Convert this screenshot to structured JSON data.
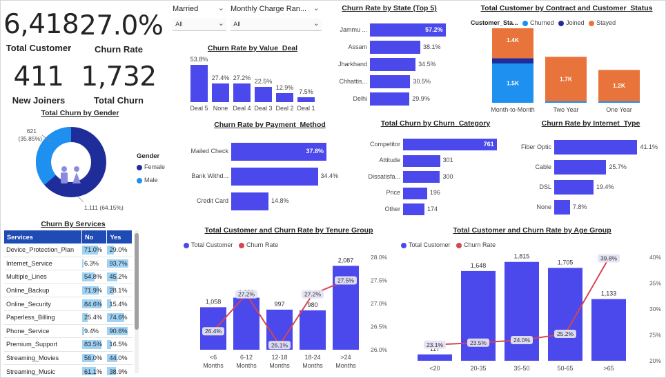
{
  "kpis": {
    "total_customer": {
      "value": "6,418",
      "label": "Total Customer"
    },
    "churn_rate": {
      "value": "27.0%",
      "label": "Churn Rate"
    },
    "new_joiners": {
      "value": "411",
      "label": "New Joiners"
    },
    "total_churn": {
      "value": "1,732",
      "label": "Total Churn"
    }
  },
  "slicers": {
    "married": {
      "label": "Married",
      "value": "All"
    },
    "monthly_charge": {
      "label": "Monthly Charge Ran...",
      "value": "All"
    }
  },
  "gender_chart": {
    "title": "Total Churn by Gender",
    "legend_title": "Gender",
    "female_label": "Female",
    "male_label": "Male",
    "male_value": "621",
    "male_pct": "(35.85%)",
    "female_value": "1,111 (64.15%)",
    "colors": {
      "female": "#1f2d9a",
      "male": "#1e90f0"
    }
  },
  "value_deal": {
    "title": "Churn Rate by Value_Deal",
    "chart_data": {
      "type": "bar",
      "categories": [
        "Deal 5",
        "None",
        "Deal 4",
        "Deal 3",
        "Deal 2",
        "Deal 1"
      ],
      "values": [
        53.8,
        27.4,
        27.2,
        22.5,
        12.9,
        7.5
      ],
      "labels": [
        "53.8%",
        "27.4%",
        "27.2%",
        "22.5%",
        "12.9%",
        "7.5%"
      ]
    }
  },
  "state": {
    "title": "Churn Rate by State (Top 5)",
    "chart_data": {
      "type": "bar",
      "categories": [
        "Jammu ...",
        "Assam",
        "Jharkhand",
        "Chhattis...",
        "Delhi"
      ],
      "values": [
        57.2,
        38.1,
        34.5,
        30.5,
        29.9
      ],
      "labels": [
        "57.2%",
        "38.1%",
        "34.5%",
        "30.5%",
        "29.9%"
      ]
    }
  },
  "contract": {
    "title": "Total Customer by Contract and Customer_Status",
    "legend_title": "Customer_Sta...",
    "legend": [
      "Churned",
      "Joined",
      "Stayed"
    ],
    "colors": {
      "churned": "#1e90f0",
      "joined": "#1f2d9a",
      "stayed": "#e8743b"
    },
    "chart_data": {
      "type": "bar",
      "categories": [
        "Month-to-Month",
        "Two Year",
        "One Year"
      ],
      "series": [
        {
          "name": "Churned",
          "values": [
            1.5,
            0.03,
            0.05
          ],
          "labels": [
            "1.5K",
            "",
            ""
          ]
        },
        {
          "name": "Joined",
          "values": [
            0.2,
            0,
            0
          ],
          "labels": [
            "",
            "",
            ""
          ]
        },
        {
          "name": "Stayed",
          "values": [
            1.4,
            1.7,
            1.2
          ],
          "labels": [
            "1.4K",
            "1.7K",
            "1.2K"
          ]
        }
      ]
    }
  },
  "payment": {
    "title": "Churn Rate by Payment_Method",
    "chart_data": {
      "type": "bar",
      "categories": [
        "Mailed Check",
        "Bank Withd...",
        "Credit Card"
      ],
      "values": [
        37.8,
        34.4,
        14.8
      ],
      "labels": [
        "37.8%",
        "34.4%",
        "14.8%"
      ]
    }
  },
  "category": {
    "title": "Total Churn by Churn_Category",
    "chart_data": {
      "type": "bar",
      "categories": [
        "Competitor",
        "Attitude",
        "Dissatisfa...",
        "Price",
        "Other"
      ],
      "values": [
        761,
        301,
        300,
        196,
        174
      ],
      "labels": [
        "761",
        "301",
        "300",
        "196",
        "174"
      ]
    }
  },
  "internet": {
    "title": "Churn Rate by Internet_Type",
    "chart_data": {
      "type": "bar",
      "categories": [
        "Fiber Optic",
        "Cable",
        "DSL",
        "None"
      ],
      "values": [
        41.1,
        25.7,
        19.4,
        7.8
      ],
      "labels": [
        "41.1%",
        "25.7%",
        "19.4%",
        "7.8%"
      ]
    }
  },
  "services": {
    "title": "Churn By Services",
    "headers": [
      "Services",
      "No",
      "Yes"
    ],
    "rows": [
      {
        "name": "Device_Protection_Plan",
        "no": "71.0%",
        "yes": "29.0%",
        "no_v": 71.0,
        "yes_v": 29.0
      },
      {
        "name": "Internet_Service",
        "no": "6.3%",
        "yes": "93.7%",
        "no_v": 6.3,
        "yes_v": 93.7
      },
      {
        "name": "Multiple_Lines",
        "no": "54.8%",
        "yes": "45.2%",
        "no_v": 54.8,
        "yes_v": 45.2
      },
      {
        "name": "Online_Backup",
        "no": "71.9%",
        "yes": "28.1%",
        "no_v": 71.9,
        "yes_v": 28.1
      },
      {
        "name": "Online_Security",
        "no": "84.6%",
        "yes": "15.4%",
        "no_v": 84.6,
        "yes_v": 15.4
      },
      {
        "name": "Paperless_Billing",
        "no": "25.4%",
        "yes": "74.6%",
        "no_v": 25.4,
        "yes_v": 74.6
      },
      {
        "name": "Phone_Service",
        "no": "9.4%",
        "yes": "90.6%",
        "no_v": 9.4,
        "yes_v": 90.6
      },
      {
        "name": "Premium_Support",
        "no": "83.5%",
        "yes": "16.5%",
        "no_v": 83.5,
        "yes_v": 16.5
      },
      {
        "name": "Streaming_Movies",
        "no": "56.0%",
        "yes": "44.0%",
        "no_v": 56.0,
        "yes_v": 44.0
      },
      {
        "name": "Streaming_Music",
        "no": "61.1%",
        "yes": "38.9%",
        "no_v": 61.1,
        "yes_v": 38.9
      }
    ]
  },
  "tenure": {
    "title": "Total Customer and Churn Rate by Tenure Group",
    "legend": [
      "Total Customer",
      "Churn Rate"
    ],
    "chart_data": {
      "type": "bar",
      "categories": [
        "<6 Months",
        "6-12 Months",
        "12-18 Months",
        "18-24 Months",
        ">24 Months"
      ],
      "cat_lines": [
        [
          "<6",
          "Months"
        ],
        [
          "6-12",
          "Months"
        ],
        [
          "12-18",
          "Months"
        ],
        [
          "18-24",
          "Months"
        ],
        [
          ">24",
          "Months"
        ]
      ],
      "series": [
        {
          "name": "Total Customer",
          "values": [
            1058,
            1296,
            997,
            980,
            2087
          ],
          "labels": [
            "1,058",
            "1,296",
            "997",
            "980",
            "2,087"
          ]
        },
        {
          "name": "Churn Rate",
          "values": [
            26.4,
            27.2,
            26.1,
            27.2,
            27.5
          ],
          "labels": [
            "26.4%",
            "27.2%",
            "26.1%",
            "27.2%",
            "27.5%"
          ]
        }
      ],
      "y2_ticks": [
        "28.0%",
        "27.5%",
        "27.0%",
        "26.5%",
        "26.0%"
      ],
      "y2lim": [
        26.0,
        28.0
      ]
    }
  },
  "age": {
    "title": "Total Customer and Churn Rate by Age Group",
    "legend": [
      "Total Customer",
      "Churn Rate"
    ],
    "chart_data": {
      "type": "bar",
      "categories": [
        "<20",
        "20-35",
        "35-50",
        "50-65",
        ">65"
      ],
      "series": [
        {
          "name": "Total Customer",
          "values": [
            117,
            1648,
            1815,
            1705,
            1133
          ],
          "labels": [
            "117",
            "1,648",
            "1,815",
            "1,705",
            "1,133"
          ]
        },
        {
          "name": "Churn Rate",
          "values": [
            23.1,
            23.5,
            24.0,
            25.2,
            39.8
          ],
          "labels": [
            "23.1%",
            "23.5%",
            "24.0%",
            "25.2%",
            "39.8%"
          ]
        }
      ],
      "y2_ticks": [
        "40%",
        "35%",
        "30%",
        "25%",
        "20%"
      ],
      "y2lim": [
        20,
        40
      ]
    }
  }
}
